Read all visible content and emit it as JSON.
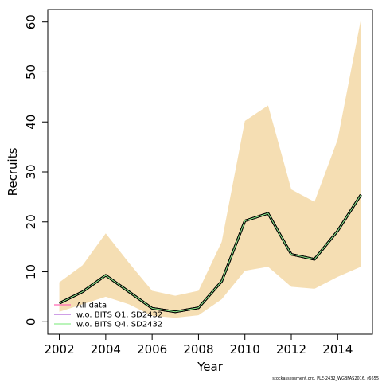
{
  "chart_data": {
    "type": "line",
    "xlabel": "Year",
    "ylabel": "Recruits",
    "xlim": [
      2001.5,
      2015.5
    ],
    "ylim": [
      -2.5,
      62.5
    ],
    "xticks": [
      2002,
      2004,
      2006,
      2008,
      2010,
      2012,
      2014
    ],
    "yticks": [
      0,
      10,
      20,
      30,
      40,
      50,
      60
    ],
    "x": [
      2002,
      2003,
      2004,
      2005,
      2006,
      2007,
      2008,
      2009,
      2010,
      2011,
      2012,
      2013,
      2014,
      2015
    ],
    "confidence_band": {
      "color": "#F5DEB3",
      "lower": [
        2.0,
        3.5,
        5.0,
        3.5,
        1.2,
        0.8,
        1.3,
        4.5,
        10.2,
        11.0,
        7.0,
        6.6,
        9.0,
        11.0
      ],
      "upper": [
        7.9,
        11.3,
        17.7,
        11.8,
        6.2,
        5.2,
        6.2,
        16.0,
        40.2,
        43.3,
        26.5,
        24.0,
        36.5,
        60.5
      ]
    },
    "series": [
      {
        "name": "All data",
        "color": "#FF69B4",
        "values": [
          3.7,
          6.0,
          9.3,
          6.0,
          2.7,
          2.0,
          2.8,
          8.1,
          20.2,
          21.7,
          13.5,
          12.5,
          18.2,
          25.4
        ]
      },
      {
        "name": "w.o. BITS Q1. SD2432",
        "color": "#B266D8",
        "values": [
          3.7,
          6.0,
          9.3,
          6.0,
          2.7,
          2.0,
          2.8,
          8.1,
          20.2,
          21.7,
          13.5,
          12.5,
          18.2,
          25.4
        ]
      },
      {
        "name": "w.o. BITS Q4. SD2432",
        "color": "#90EE90",
        "values": [
          3.7,
          6.0,
          9.3,
          6.0,
          2.7,
          2.0,
          2.8,
          8.1,
          20.2,
          21.7,
          13.5,
          12.5,
          18.2,
          25.4
        ]
      }
    ],
    "legend_position": "bottom-left",
    "grid": false
  },
  "footer": "stockassessment.org, PLE-2432_WGBFAS2016, r6655"
}
